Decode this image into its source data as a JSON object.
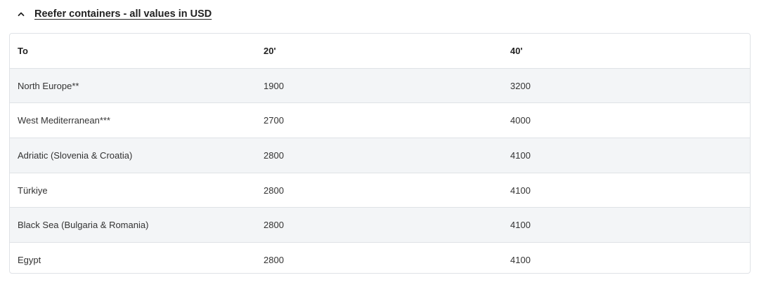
{
  "section": {
    "title": "Reefer containers - all values in USD",
    "expanded": true,
    "toggle_icon": "chevron-up-icon"
  },
  "table": {
    "headers": [
      "To",
      "20'",
      "40'"
    ],
    "rows": [
      [
        "North Europe**",
        "1900",
        "3200"
      ],
      [
        "West Mediterranean***",
        "2700",
        "4000"
      ],
      [
        "Adriatic (Slovenia & Croatia)",
        "2800",
        "4100"
      ],
      [
        "Türkiye",
        "2800",
        "4100"
      ],
      [
        "Black Sea (Bulgaria & Romania)",
        "2800",
        "4100"
      ],
      [
        "Egypt",
        "2800",
        "4100"
      ]
    ]
  }
}
